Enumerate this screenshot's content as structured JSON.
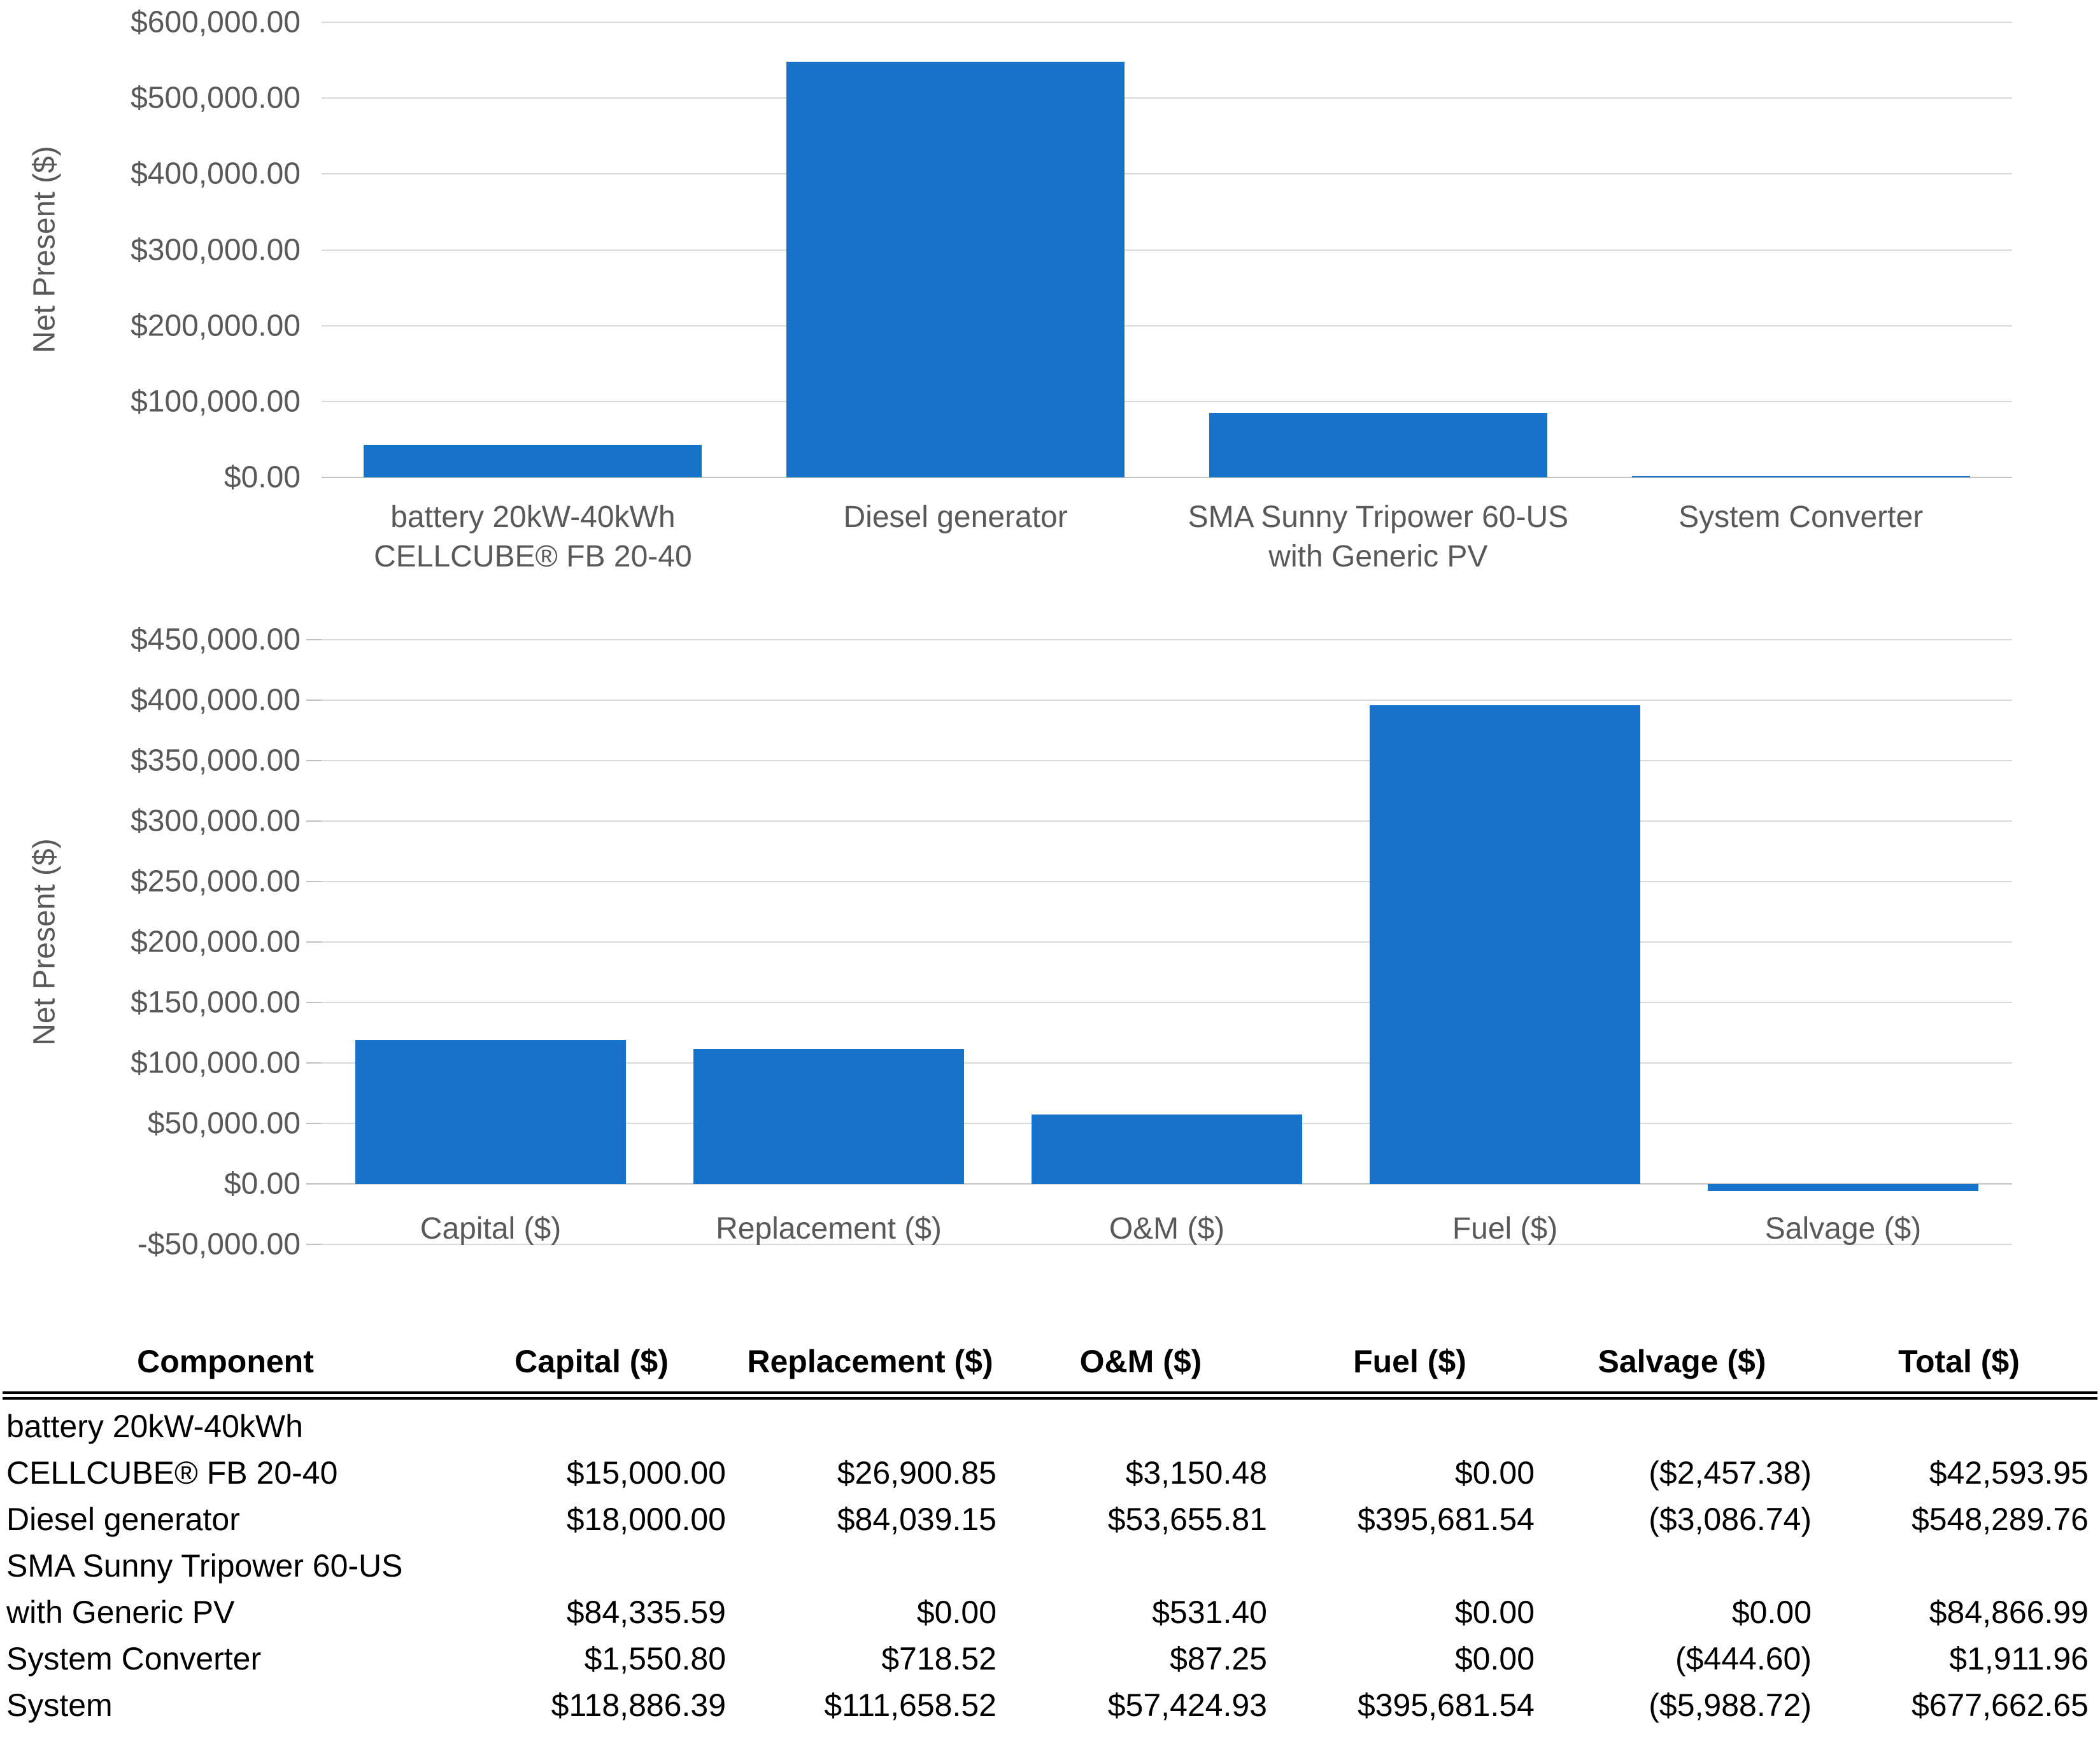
{
  "chart_data": [
    {
      "type": "bar",
      "title": "",
      "xlabel": "",
      "ylabel": "Net Present ($)",
      "ylim": [
        0,
        600000
      ],
      "ytick_step": 100000,
      "grid": true,
      "legend": "none",
      "bar_color": "#1673c9",
      "categories": [
        "battery 20kW-40kWh CELLCUBE® FB 20-40",
        "Diesel generator",
        "SMA Sunny Tripower 60-US with Generic PV",
        "System Converter"
      ],
      "category_label_lines": [
        [
          "battery 20kW-40kWh",
          "CELLCUBE® FB 20-40"
        ],
        [
          "Diesel generator"
        ],
        [
          "SMA Sunny Tripower 60-US",
          "with Generic PV"
        ],
        [
          "System Converter"
        ]
      ],
      "values": [
        42593.95,
        548289.76,
        84866.99,
        1911.96
      ],
      "y_tick_labels": [
        "$600,000.00",
        "$500,000.00",
        "$400,000.00",
        "$300,000.00",
        "$200,000.00",
        "$100,000.00",
        "$0.00"
      ]
    },
    {
      "type": "bar",
      "title": "",
      "xlabel": "",
      "ylabel": "Net Present ($)",
      "ylim": [
        -50000,
        450000
      ],
      "ytick_step": 50000,
      "grid": true,
      "legend": "none",
      "bar_color": "#1673c9",
      "categories": [
        "Capital ($)",
        "Replacement ($)",
        "O&M ($)",
        "Fuel ($)",
        "Salvage ($)"
      ],
      "category_label_lines": [
        [
          "Capital ($)"
        ],
        [
          "Replacement ($)"
        ],
        [
          "O&M ($)"
        ],
        [
          "Fuel ($)"
        ],
        [
          "Salvage ($)"
        ]
      ],
      "values": [
        118886.39,
        111658.52,
        57424.93,
        395681.54,
        -5988.72
      ],
      "y_tick_labels": [
        "$450,000.00",
        "$400,000.00",
        "$350,000.00",
        "$300,000.00",
        "$250,000.00",
        "$200,000.00",
        "$150,000.00",
        "$100,000.00",
        "$50,000.00",
        "$0.00",
        "-$50,000.00"
      ]
    }
  ],
  "table": {
    "headers": [
      "Component",
      "Capital ($)",
      "Replacement ($)",
      "O&M ($)",
      "Fuel ($)",
      "Salvage ($)",
      "Total ($)"
    ],
    "rows": [
      {
        "component_lines": [
          "battery 20kW-40kWh",
          "CELLCUBE® FB 20-40"
        ],
        "capital": "$15,000.00",
        "replacement": "$26,900.85",
        "om": "$3,150.48",
        "fuel": "$0.00",
        "salvage": "($2,457.38)",
        "total": "$42,593.95"
      },
      {
        "component_lines": [
          "Diesel generator"
        ],
        "capital": "$18,000.00",
        "replacement": "$84,039.15",
        "om": "$53,655.81",
        "fuel": "$395,681.54",
        "salvage": "($3,086.74)",
        "total": "$548,289.76"
      },
      {
        "component_lines": [
          "SMA Sunny Tripower 60-US",
          "with Generic PV"
        ],
        "capital": "$84,335.59",
        "replacement": "$0.00",
        "om": "$531.40",
        "fuel": "$0.00",
        "salvage": "$0.00",
        "total": "$84,866.99"
      },
      {
        "component_lines": [
          "System Converter"
        ],
        "capital": "$1,550.80",
        "replacement": "$718.52",
        "om": "$87.25",
        "fuel": "$0.00",
        "salvage": "($444.60)",
        "total": "$1,911.96"
      },
      {
        "component_lines": [
          "System"
        ],
        "capital": "$118,886.39",
        "replacement": "$111,658.52",
        "om": "$57,424.93",
        "fuel": "$395,681.54",
        "salvage": "($5,988.72)",
        "total": "$677,662.65"
      }
    ]
  },
  "colors": {
    "bar": "#1673c9",
    "gridline": "#d9d9d9",
    "axis_text": "#595959",
    "table_text": "#000000"
  }
}
